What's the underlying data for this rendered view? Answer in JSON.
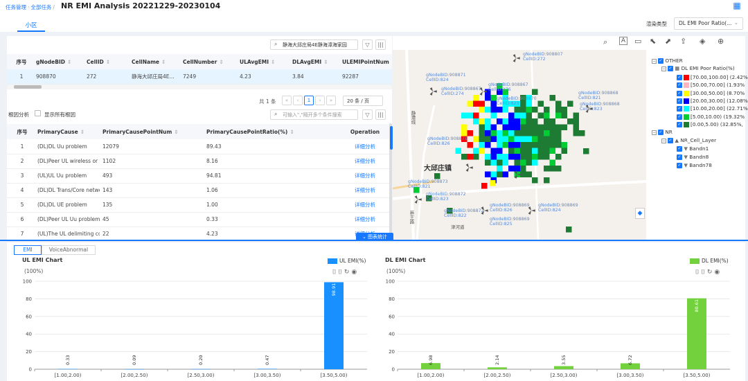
{
  "header": {
    "breadcrumb": [
      "任务管理",
      "全部任务"
    ],
    "title": "NR EMI Analysis 20221229-20230104",
    "tab": "小区",
    "render_label": "渲染类型",
    "render_value": "DL EMI Poor Ratio(..."
  },
  "cell_table": {
    "search_value": "静海大邱庄局4E静海漳海家园",
    "columns": [
      "序号",
      "gNodeBID",
      "CellID",
      "CellName",
      "CellNumber",
      "ULAvgEMI",
      "DLAvgEMI",
      "ULEMIPointNum"
    ],
    "rows": [
      [
        "1",
        "908870",
        "272",
        "静海大邱庄局4E...",
        "7249",
        "4.23",
        "3.84",
        "92287"
      ]
    ],
    "pager": {
      "total": "共 1 条",
      "page": "1",
      "page_size": "20 条 / 页"
    }
  },
  "cause_table": {
    "label": "根因分析",
    "checkbox_label": "显示所有根因",
    "search_placeholder": "可输入\",\"隔开多个条件搜索",
    "columns": [
      "序号",
      "PrimaryCause",
      "PrimaryCausePointNum",
      "PrimaryCausePointRatio(%)",
      "Operation"
    ],
    "rows": [
      [
        "1",
        "(DL)DL Uu problem",
        "12079",
        "89.43",
        "详细分析"
      ],
      [
        "2",
        "(DL)Peer UL wireless or t...",
        "1102",
        "8.16",
        "详细分析"
      ],
      [
        "3",
        "(UL)UL Uu problem",
        "493",
        "94.81",
        "详细分析"
      ],
      [
        "4",
        "(DL)DL Trans/Core netwo...",
        "143",
        "1.06",
        "详细分析"
      ],
      [
        "5",
        "(DL)DL UE problem",
        "135",
        "1.00",
        "详细分析"
      ],
      [
        "6",
        "(DL)Peer UL Uu problem",
        "45",
        "0.33",
        "详细分析"
      ],
      [
        "7",
        "(UL)The UL delimiting co...",
        "22",
        "4.23",
        "详细分析"
      ]
    ]
  },
  "map": {
    "labels": [
      {
        "t": "gNodeBID:908807",
        "c": "CellID:272"
      },
      {
        "t": "gNodeBID:908871",
        "c": "CellID:824"
      },
      {
        "t": "gNodeBID:908867",
        "c": "CellID:274"
      },
      {
        "t": "gNodeBID:908867",
        "c": "CellID:276"
      },
      {
        "t": "gNodeBID:908870",
        "c": "CellID:825"
      },
      {
        "t": "gNodeBID:908868",
        "c": "CellID:821"
      },
      {
        "t": "gNodeBID:908868",
        "c": "CellID:823"
      },
      {
        "t": "gNodeBID:908871",
        "c": "CellID:826"
      },
      {
        "t": "gNodeBID:908873",
        "c": "CellID:821"
      },
      {
        "t": "gNodeBID:908872",
        "c": "CellID:823"
      },
      {
        "t": "gNodeBID:908869",
        "c": "CellID:826"
      },
      {
        "t": "gNodeBID:908869",
        "c": "CellID:824"
      },
      {
        "t": "gNodeBID:908872",
        "c": "CellID:822"
      },
      {
        "t": "gNodeBID:908869",
        "c": "CellID:825"
      }
    ],
    "place_name": "大邱庄镇",
    "road_label": "蔡王路",
    "road_label2": "津河道",
    "road_label3": "静港线"
  },
  "legend": {
    "other": "OTHER",
    "layer": "DL EMI Poor Ratio(%)",
    "ranges": [
      {
        "label": "[70.00,100.00] (2.42%",
        "color": "#ff0000"
      },
      {
        "label": "[50.00,70.00] (1.93%",
        "color": "#ffb6c1"
      },
      {
        "label": "[30.00,50.00] (8.70%",
        "color": "#ffff00"
      },
      {
        "label": "[20.00,30.00] (12.08%",
        "color": "#0000ff"
      },
      {
        "label": "[10.00,20.00] (22.71%",
        "color": "#00ffff"
      },
      {
        "label": "[5.00,10.00) (19.32%",
        "color": "#00cc33"
      },
      {
        "label": "[0.00,5.00) (32.85%,",
        "color": "#1e7b34"
      }
    ],
    "nr": "NR",
    "cell_layer": "NR_Cell_Layer",
    "bands": [
      "Bandn1",
      "Bandn8",
      "Bandn78"
    ]
  },
  "bottom": {
    "stat_button": "图表统计",
    "tabs": [
      "EMI",
      "VoiceAbnormal"
    ]
  },
  "chart_data": [
    {
      "type": "bar",
      "title": "UL EMI Chart",
      "ylabel": "(100%)",
      "series": [
        {
          "name": "UL EMI(%)",
          "values": [
            0.33,
            0.09,
            0.2,
            0.47,
            98.91
          ]
        }
      ],
      "categories": [
        "[1.00,2.00)",
        "[2.00,2.50)",
        "[2.50,3.00)",
        "[3.00,3.50)",
        "[3.50,5.00)"
      ],
      "ylim": [
        0,
        100
      ],
      "yticks": [
        0,
        20,
        40,
        60,
        80,
        100
      ],
      "color": "#1890ff",
      "grid": true,
      "legend": "top-right"
    },
    {
      "type": "bar",
      "title": "DL EMI Chart",
      "ylabel": "(100%)",
      "series": [
        {
          "name": "DL EMI(%)",
          "values": [
            6.98,
            2.14,
            3.55,
            6.72,
            80.61
          ]
        }
      ],
      "categories": [
        "[1.00,2.00)",
        "[2.00,2.50)",
        "[2.50,3.00)",
        "[3.00,3.50)",
        "[3.50,5.00)"
      ],
      "ylim": [
        0,
        100
      ],
      "yticks": [
        0,
        20,
        40,
        60,
        80,
        100
      ],
      "color": "#73d13d",
      "grid": true,
      "legend": "top-right"
    }
  ]
}
